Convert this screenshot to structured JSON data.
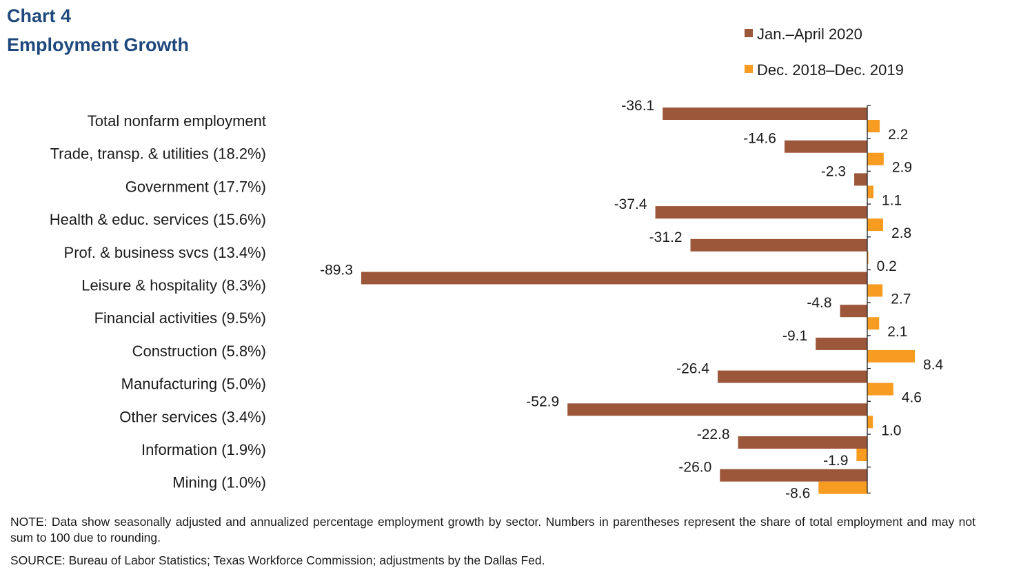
{
  "header": {
    "title": "Chart 4",
    "subtitle": "Employment Growth"
  },
  "footer": {
    "note": "NOTE: Data show seasonally adjusted and annualized percentage employment growth by sector. Numbers in parentheses represent the share of total employment and may not sum to 100 due to rounding.",
    "source": "SOURCE: Bureau of Labor Statistics; Texas Workforce Commission; adjustments by the Dallas Fed."
  },
  "chart_data": {
    "type": "bar",
    "orientation": "horizontal",
    "title": "Chart 4",
    "subtitle": "Employment Growth",
    "categories": [
      "Total nonfarm employment",
      "Trade, transp. & utilities (18.2%)",
      "Government (17.7%)",
      "Health & educ. services (15.6%)",
      "Prof. & business svcs (13.4%)",
      "Leisure & hospitality (8.3%)",
      "Financial activities (9.5%)",
      "Construction (5.8%)",
      "Manufacturing (5.0%)",
      "Other services (3.4%)",
      "Information (1.9%)",
      "Mining (1.0%)"
    ],
    "series": [
      {
        "name": "Jan.–April 2020",
        "color": "#9c573a",
        "values": [
          -36.1,
          -14.6,
          -2.3,
          -37.4,
          -31.2,
          -89.3,
          -4.8,
          -9.1,
          -26.4,
          -52.9,
          -22.8,
          -26.0
        ],
        "labels": [
          "-36.1",
          "-14.6",
          "-2.3",
          "-37.4",
          "-31.2",
          "-89.3",
          "-4.8",
          "-9.1",
          "-26.4",
          "-52.9",
          "-22.8",
          "-26.0"
        ]
      },
      {
        "name": "Dec. 2018–Dec. 2019",
        "color": "#f79b21",
        "values": [
          2.2,
          2.9,
          1.1,
          2.8,
          0.2,
          2.7,
          2.1,
          8.4,
          4.6,
          1.0,
          -1.9,
          -8.6
        ],
        "labels": [
          "2.2",
          "2.9",
          "1.1",
          "2.8",
          "0.2",
          "2.7",
          "2.1",
          "8.4",
          "4.6",
          "1.0",
          "-1.9",
          "-8.6"
        ]
      }
    ],
    "legend_position": "top-right",
    "grid": false,
    "axis_labels_shown": false
  }
}
